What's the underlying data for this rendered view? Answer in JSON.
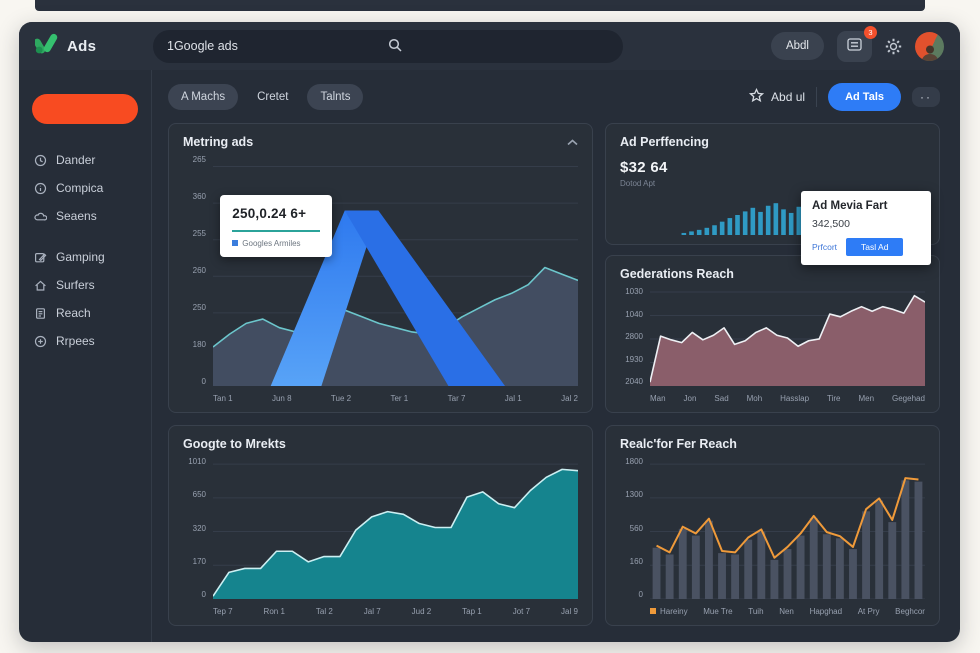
{
  "topbar": {
    "logo_text": "Ads",
    "search": {
      "value": "1Google ads"
    },
    "profile_button": "Abdl",
    "notification_badge": "3"
  },
  "sidebar": {
    "items": [
      {
        "label": "Dander",
        "icon": "clock-icon",
        "gap_before": false
      },
      {
        "label": "Compica",
        "icon": "info-icon",
        "gap_before": false
      },
      {
        "label": "Seaens",
        "icon": "cloud-icon",
        "gap_before": false
      },
      {
        "label": "Gamping",
        "icon": "edit-icon",
        "gap_before": true
      },
      {
        "label": "Surfers",
        "icon": "home-icon",
        "gap_before": false
      },
      {
        "label": "Reach",
        "icon": "document-icon",
        "gap_before": false
      },
      {
        "label": "Rrpees",
        "icon": "plus-circle-icon",
        "gap_before": false
      }
    ]
  },
  "toolbar": {
    "tabs": [
      {
        "label": "A Machs",
        "pill": true
      },
      {
        "label": "Cretet",
        "pill": false
      },
      {
        "label": "Talnts",
        "pill": true
      }
    ],
    "favorite_label": "Abd ul",
    "primary_button": "Ad Tals",
    "more_label": "··"
  },
  "chart_data": [
    {
      "type": "area",
      "title": "Metring ads",
      "x": [
        "Tan 1",
        "Jun 8",
        "Tue 2",
        "Ter 1",
        "Tar 7",
        "Jal 1",
        "Jal 2"
      ],
      "yticks": [
        "265",
        "360",
        "255",
        "260",
        "250",
        "180",
        "0"
      ],
      "series": [
        {
          "name": "Googles Armiles",
          "values": [
            16,
            22,
            27,
            29,
            25,
            23,
            26,
            30,
            33,
            30,
            27,
            25,
            23,
            22,
            25,
            30,
            34,
            38,
            41,
            45,
            53,
            50,
            47
          ]
        }
      ],
      "ylim": [
        0,
        360
      ],
      "grid": true,
      "colors": {
        "fill": "#424d61",
        "line": "#6cc6cc",
        "logo_light": "#58a3f7",
        "logo_mid": "#2e79ef",
        "logo_dark": "#2a6fe6"
      },
      "tooltip": {
        "value": "250,0.24 6+",
        "legend": "Googles Armiles"
      }
    },
    {
      "type": "bar",
      "title": "Ad Perffencing",
      "stat": {
        "value": "$32 64",
        "label": "Dotod Apt"
      },
      "values": [
        4,
        7,
        10,
        14,
        19,
        26,
        33,
        39,
        46,
        53,
        45,
        57,
        62,
        50,
        43,
        55,
        47,
        39,
        48,
        58,
        52,
        44,
        37,
        49,
        57,
        50,
        43,
        35,
        31,
        39,
        45,
        41
      ],
      "grid": false,
      "colors": {
        "bar": "#2f9ac4"
      },
      "popup": {
        "title": "Ad Mevia Fart",
        "value": "342,500",
        "link": "Prfcort",
        "button": "Tasl Ad"
      }
    },
    {
      "type": "area",
      "title": "Gederations Reach",
      "x": [
        "Man",
        "Jon",
        "Sad",
        "Moh",
        "Hasslap",
        "Tire",
        "Men",
        "Gegehad"
      ],
      "yticks": [
        "1030",
        "1040",
        "2800",
        "1930",
        "2040"
      ],
      "values": [
        2,
        52,
        48,
        45,
        56,
        48,
        53,
        61,
        43,
        47,
        56,
        61,
        53,
        50,
        41,
        47,
        49,
        76,
        73,
        79,
        84,
        79,
        84,
        81,
        77,
        96,
        89
      ],
      "ylim": [
        2040,
        1030
      ],
      "grid": true,
      "colors": {
        "fill": "#8a5e6a",
        "line": "#eef0f4"
      }
    },
    {
      "type": "area",
      "title": "Googte to Mrekts",
      "x": [
        "Tep 7",
        "Ron 1",
        "Tal 2",
        "Jal 7",
        "Jud 2",
        "Tap 1",
        "Jot 7",
        "Jal 9"
      ],
      "yticks": [
        "1010",
        "650",
        "320",
        "170",
        "0"
      ],
      "values": [
        0,
        18,
        21,
        21,
        34,
        34,
        26,
        30,
        30,
        50,
        60,
        64,
        62,
        55,
        52,
        52,
        75,
        79,
        70,
        67,
        80,
        90,
        96,
        95
      ],
      "ylim": [
        0,
        1010
      ],
      "grid": true,
      "colors": {
        "fill": "#15848e",
        "line": "#cbeff2"
      }
    },
    {
      "type": "bar+line",
      "title": "Realc'for Fer Reach",
      "x": [
        "Hareiny",
        "Mue Tre",
        "Tuih",
        "Nen",
        "Hapghad",
        "At Pry",
        "Beghcor"
      ],
      "yticks": [
        "1800",
        "1300",
        "560",
        "160",
        "0"
      ],
      "values": [
        38,
        33,
        52,
        47,
        58,
        34,
        33,
        44,
        50,
        29,
        37,
        47,
        60,
        48,
        45,
        37,
        65,
        73,
        57,
        88,
        87
      ],
      "ylim": [
        0,
        1800
      ],
      "grid": true,
      "legend_marker": true,
      "colors": {
        "bar": "#4a5262",
        "line": "#ef9a3a"
      }
    }
  ]
}
